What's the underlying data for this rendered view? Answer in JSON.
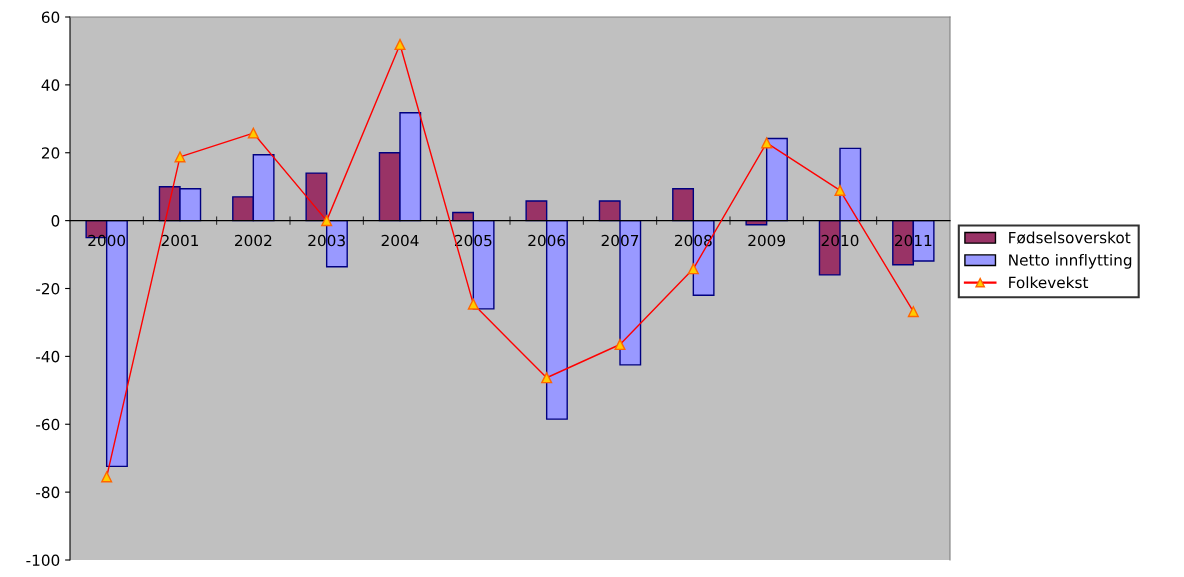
{
  "chart_data": {
    "type": "bar",
    "categories": [
      "2000",
      "2001",
      "2002",
      "2003",
      "2004",
      "2005",
      "2006",
      "2007",
      "2008",
      "2009",
      "2010",
      "2011"
    ],
    "series": [
      {
        "name": "Fødselsoverskot",
        "color": "#993366",
        "values": [
          -5,
          10,
          7,
          14,
          20,
          2.4,
          5.8,
          5.8,
          9.4,
          -1.2,
          -16,
          -13
        ]
      },
      {
        "name": "Netto innflytting",
        "color": "#9999ff",
        "values": [
          -72.4,
          9.4,
          19.4,
          -13.6,
          31.8,
          -26,
          -58.5,
          -42.5,
          -22,
          24.2,
          21.3,
          -11.9
        ]
      },
      {
        "name": "Folkevekst",
        "type": "line",
        "color": "#ff0000",
        "marker": "triangle",
        "values": [
          -75.5,
          18.8,
          25.8,
          0,
          51.9,
          -24.6,
          -46.3,
          -36.5,
          -14.2,
          22.9,
          8.9,
          -26.8
        ]
      }
    ],
    "ylim": [
      -100,
      60
    ],
    "yticks": [
      -100,
      -80,
      -60,
      -40,
      -20,
      0,
      20,
      40,
      60
    ],
    "grid": false,
    "legend": "right"
  }
}
